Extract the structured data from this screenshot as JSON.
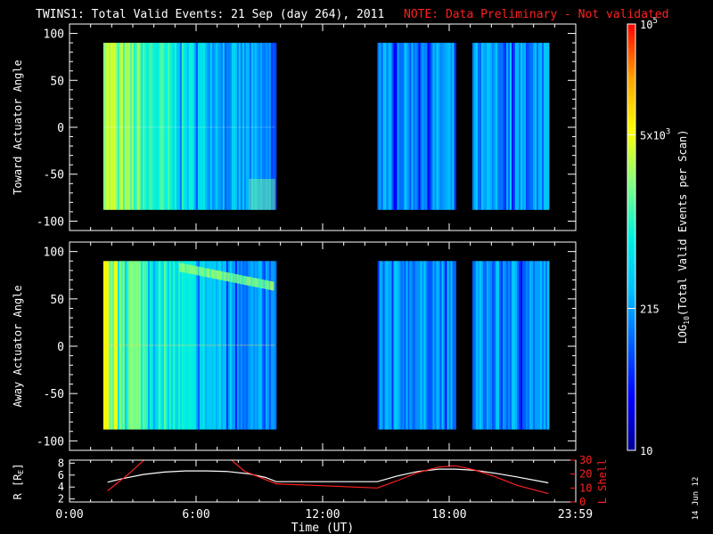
{
  "header": {
    "title": "TWINS1: Total Valid Events: 21 Sep (day 264), 2011",
    "note": "NOTE: Data Preliminary - Not validated"
  },
  "colors": {
    "background": "#000000",
    "foreground": "#ffffff",
    "note": "#ff2020",
    "lshell": "#ff2020"
  },
  "chart_data": [
    {
      "type": "heatmap",
      "name": "toward",
      "ylabel": "Toward Actuator Angle",
      "ylim": [
        -110,
        110
      ],
      "yticks": [
        100,
        50,
        0,
        -50,
        -100
      ],
      "xlim_hours": [
        0,
        24
      ],
      "data_segments_hours": [
        [
          1.6,
          9.75
        ],
        [
          14.6,
          18.3
        ],
        [
          19.1,
          22.7
        ]
      ],
      "angle_range": [
        -88,
        90
      ]
    },
    {
      "type": "heatmap",
      "name": "away",
      "ylabel": "Away Actuator Angle",
      "ylim": [
        -110,
        110
      ],
      "yticks": [
        100,
        50,
        0,
        -50,
        -100
      ],
      "xlim_hours": [
        0,
        24
      ],
      "data_segments_hours": [
        [
          1.6,
          9.75
        ],
        [
          14.6,
          18.3
        ],
        [
          19.1,
          22.7
        ]
      ],
      "angle_range": [
        -88,
        90
      ]
    },
    {
      "type": "line",
      "name": "orbit",
      "ylabel_left": "R [R",
      "ylabel_left_sub": "E",
      "ylabel_left_end": "]",
      "ylabel_right": "L Shell",
      "yticks_left": [
        8,
        6,
        4,
        2
      ],
      "yticks_right": [
        30,
        20,
        10,
        0
      ],
      "ylim_left": [
        1.5,
        8.5
      ],
      "ylim_right": [
        0,
        30
      ],
      "xlabel": "Time (UT)",
      "xticks": [
        {
          "h": 0,
          "label": "0:00"
        },
        {
          "h": 6,
          "label": "6:00"
        },
        {
          "h": 12,
          "label": "12:00"
        },
        {
          "h": 18,
          "label": "18:00"
        },
        {
          "h": 23.98,
          "label": "23:59"
        }
      ],
      "series": [
        {
          "name": "R",
          "x": [
            1.8,
            2.5,
            3.5,
            4.5,
            5.5,
            6.5,
            7.5,
            8.5,
            9.3,
            9.8,
            14.6,
            15.5,
            16.5,
            17.5,
            18.3,
            19.2,
            20.2,
            21.2,
            22.7
          ],
          "y": [
            4.8,
            5.4,
            6.1,
            6.5,
            6.7,
            6.7,
            6.6,
            6.2,
            5.6,
            4.9,
            4.9,
            5.8,
            6.6,
            7.0,
            7.0,
            6.8,
            6.3,
            5.7,
            4.7
          ]
        },
        {
          "name": "L Shell",
          "x": [
            1.8,
            2.8,
            3.6,
            7.6,
            8.3,
            9.8,
            14.6,
            15.5,
            16.5,
            17.5,
            18.3,
            19.2,
            20.2,
            21.2,
            22.7
          ],
          "y": [
            8,
            20,
            31,
            31,
            22,
            13,
            10,
            15,
            21,
            25,
            26,
            23,
            18,
            12,
            6
          ]
        }
      ]
    }
  ],
  "colorbar": {
    "label": "LOG",
    "label_sub": "10",
    "label_rest": "(Total Valid Events per Scan)",
    "tick_labels": [
      {
        "base": "10",
        "sup": "5",
        "frac": 1.0
      },
      {
        "base": "5x10",
        "sup": "3",
        "frac": 0.74
      },
      {
        "base": "215",
        "sup": "",
        "frac": 0.333
      },
      {
        "base": "10",
        "sup": "",
        "frac": 0.0
      }
    ],
    "stops": [
      "#000090",
      "#0000ff",
      "#0060ff",
      "#00c0ff",
      "#00f0e0",
      "#80ff80",
      "#ffff00",
      "#ffa000",
      "#ff0000"
    ]
  },
  "footer": {
    "date_stamp": "14 Jun 12"
  }
}
